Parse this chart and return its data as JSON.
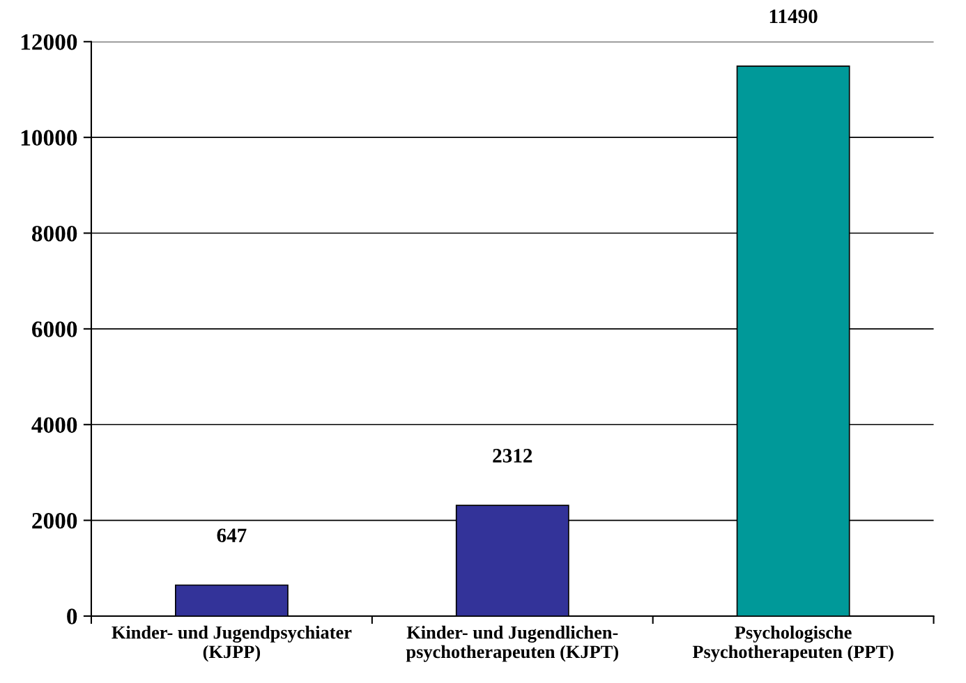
{
  "chart_data": {
    "type": "bar",
    "categories": [
      "Kinder- und Jugendpsychiater\n(KJPP)",
      "Kinder- und Jugendlichen-\npsychotherapeuten (KJPT)",
      "Psychologische\nPsychotherapeuten (PPT)"
    ],
    "values": [
      647,
      2312,
      11490
    ],
    "colors": [
      "#333399",
      "#333399",
      "#009999"
    ],
    "ylim": [
      0,
      12000
    ],
    "yticks": [
      0,
      2000,
      4000,
      6000,
      8000,
      10000,
      12000
    ],
    "grid": "y",
    "data_labels": true
  }
}
